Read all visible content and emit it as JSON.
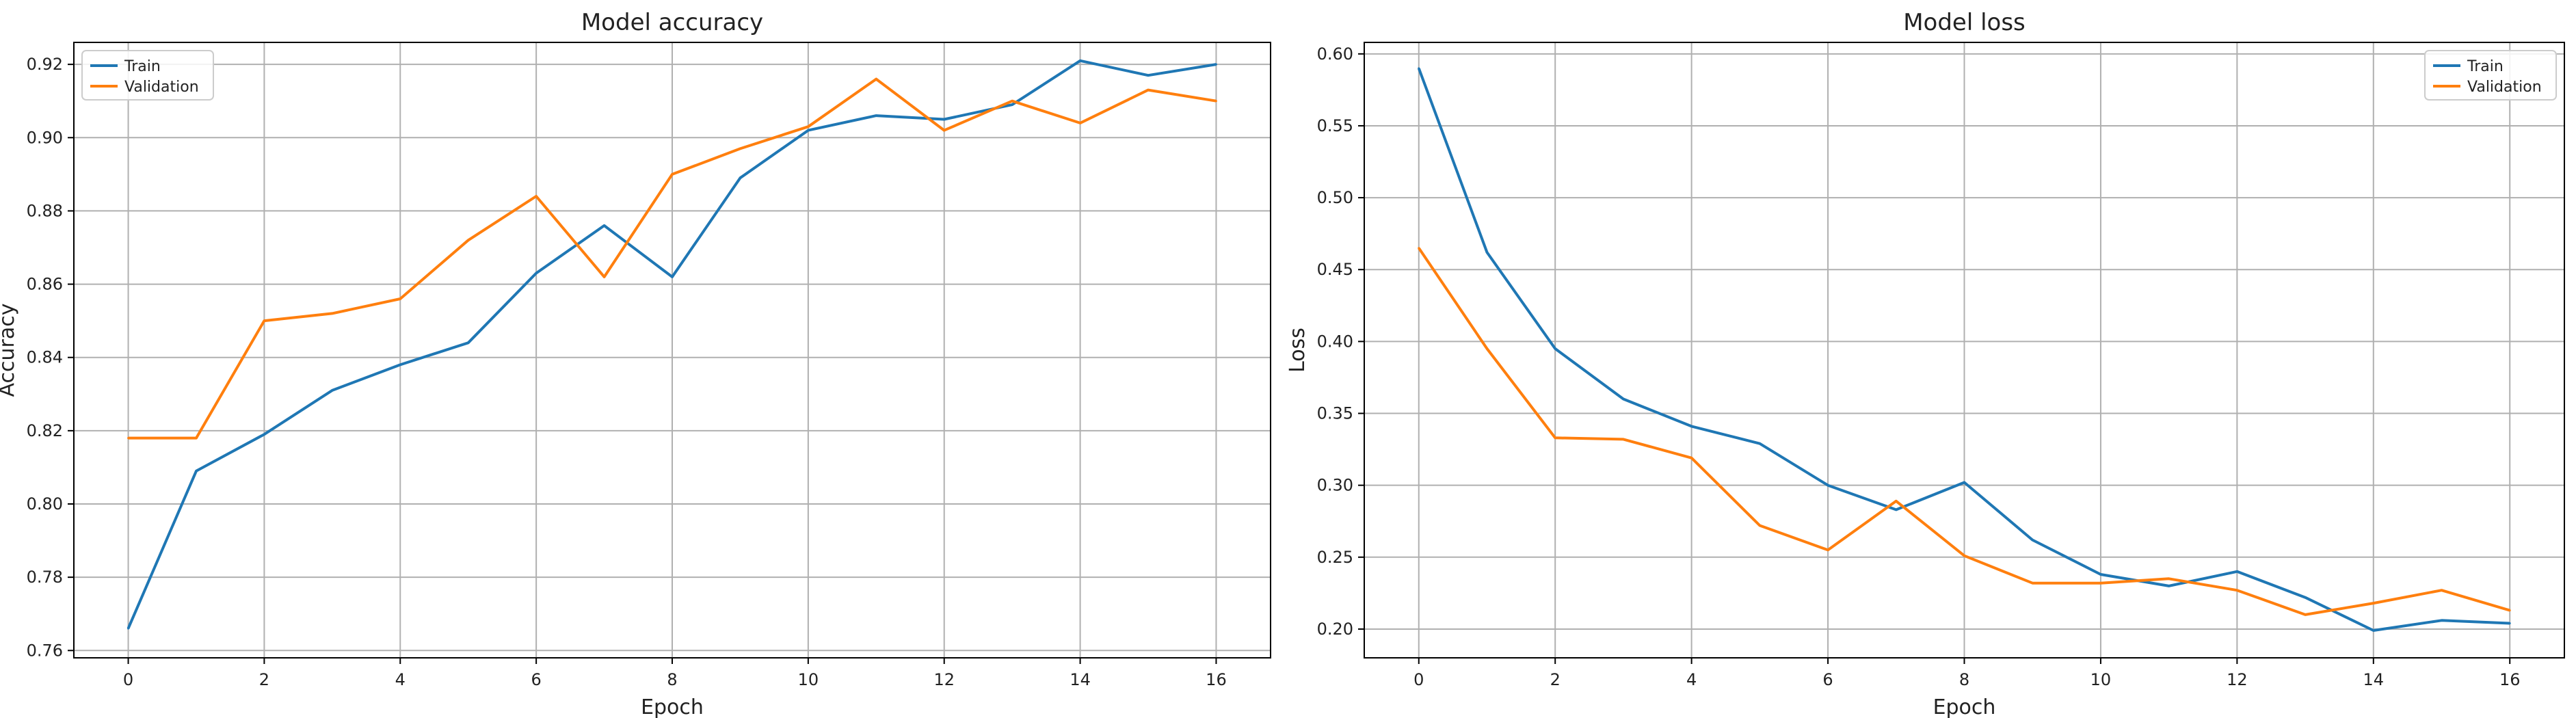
{
  "colors": {
    "train": "#1f77b4",
    "validation": "#ff7f0e",
    "grid": "#b0b0b0",
    "axis": "#000000"
  },
  "chart_data": [
    {
      "type": "line",
      "title": "Model accuracy",
      "xlabel": "Epoch",
      "ylabel": "Accuracy",
      "xlim": [
        -0.8,
        16.8
      ],
      "ylim": [
        0.758,
        0.926
      ],
      "xticks": [
        0,
        2,
        4,
        6,
        8,
        10,
        12,
        14,
        16
      ],
      "yticks": [
        0.76,
        0.78,
        0.8,
        0.82,
        0.84,
        0.86,
        0.88,
        0.9,
        0.92
      ],
      "ytick_labels": [
        "0.76",
        "0.78",
        "0.80",
        "0.82",
        "0.84",
        "0.86",
        "0.88",
        "0.90",
        "0.92"
      ],
      "grid": true,
      "legend": "upper-left",
      "x": [
        0,
        1,
        2,
        3,
        4,
        5,
        6,
        7,
        8,
        9,
        10,
        11,
        12,
        13,
        14,
        15,
        16
      ],
      "series": [
        {
          "name": "Train",
          "values": [
            0.766,
            0.809,
            0.819,
            0.831,
            0.838,
            0.844,
            0.863,
            0.876,
            0.862,
            0.889,
            0.902,
            0.906,
            0.905,
            0.909,
            0.921,
            0.917,
            0.92
          ]
        },
        {
          "name": "Validation",
          "values": [
            0.818,
            0.818,
            0.85,
            0.852,
            0.856,
            0.872,
            0.884,
            0.862,
            0.89,
            0.897,
            0.903,
            0.916,
            0.902,
            0.91,
            0.904,
            0.913,
            0.91
          ]
        }
      ]
    },
    {
      "type": "line",
      "title": "Model loss",
      "xlabel": "Epoch",
      "ylabel": "Loss",
      "xlim": [
        -0.8,
        16.8
      ],
      "ylim": [
        0.18,
        0.608
      ],
      "xticks": [
        0,
        2,
        4,
        6,
        8,
        10,
        12,
        14,
        16
      ],
      "yticks": [
        0.2,
        0.25,
        0.3,
        0.35,
        0.4,
        0.45,
        0.5,
        0.55,
        0.6
      ],
      "ytick_labels": [
        "0.20",
        "0.25",
        "0.30",
        "0.35",
        "0.40",
        "0.45",
        "0.50",
        "0.55",
        "0.60"
      ],
      "grid": true,
      "legend": "upper-right",
      "x": [
        0,
        1,
        2,
        3,
        4,
        5,
        6,
        7,
        8,
        9,
        10,
        11,
        12,
        13,
        14,
        15,
        16
      ],
      "series": [
        {
          "name": "Train",
          "values": [
            0.59,
            0.462,
            0.395,
            0.36,
            0.341,
            0.329,
            0.3,
            0.283,
            0.302,
            0.262,
            0.238,
            0.23,
            0.24,
            0.222,
            0.199,
            0.206,
            0.204
          ]
        },
        {
          "name": "Validation",
          "values": [
            0.465,
            0.395,
            0.333,
            0.332,
            0.319,
            0.272,
            0.255,
            0.289,
            0.251,
            0.232,
            0.232,
            0.235,
            0.227,
            0.21,
            0.218,
            0.227,
            0.213
          ]
        }
      ]
    }
  ]
}
